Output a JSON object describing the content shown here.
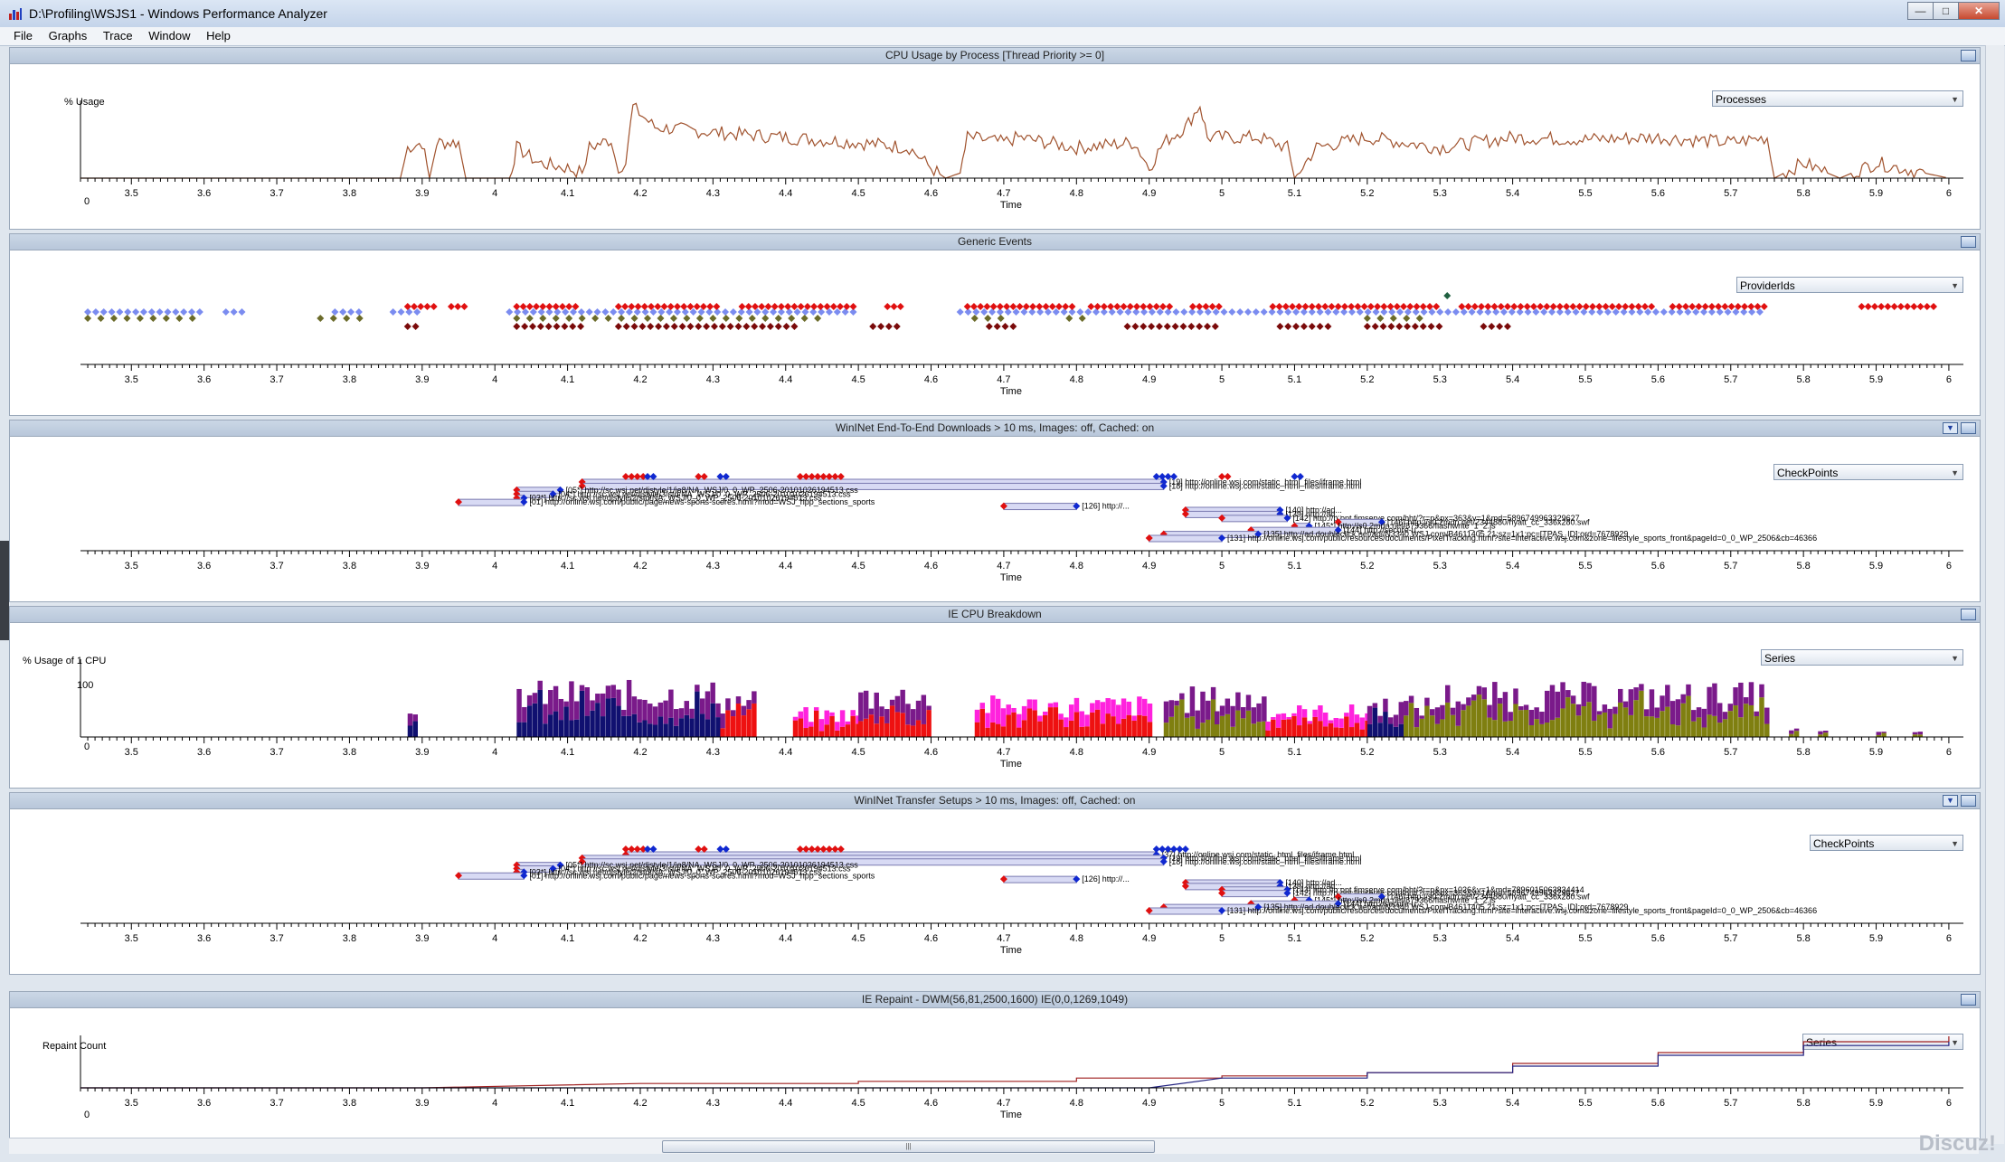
{
  "window": {
    "title": "D:\\Profiling\\WSJS1 - Windows Performance Analyzer",
    "watermark": "Discuz!"
  },
  "menu": [
    "File",
    "Graphs",
    "Trace",
    "Window",
    "Help"
  ],
  "axis": {
    "xlabel": "Time",
    "ticks": [
      "3.5",
      "3.6",
      "3.7",
      "3.8",
      "3.9",
      "4",
      "4.1",
      "4.2",
      "4.3",
      "4.4",
      "4.5",
      "4.6",
      "4.7",
      "4.8",
      "4.9",
      "5",
      "5.1",
      "5.2",
      "5.3",
      "5.4",
      "5.5",
      "5.6",
      "5.7",
      "5.8",
      "5.9",
      "6"
    ]
  },
  "panels": [
    {
      "title": "CPU Usage by Process [Thread Priority >= 0]",
      "dropdown": "Processes",
      "ylabel": "% Usage",
      "yticks": [
        "0"
      ]
    },
    {
      "title": "Generic Events",
      "dropdown": "ProviderIds"
    },
    {
      "title": "WinINet End-To-End Downloads > 10 ms, Images: off, Cached: on",
      "dropdown": "CheckPoints"
    },
    {
      "title": "IE CPU Breakdown",
      "dropdown": "Series",
      "ylabel": "% Usage of 1 CPU",
      "yticks": [
        "100",
        "0"
      ]
    },
    {
      "title": "WinINet Transfer Setups > 10 ms, Images: off, Cached: on",
      "dropdown": "CheckPoints"
    },
    {
      "title": "IE Repaint - DWM(56,81,2500,1600) IE(0,0,1269,1049)",
      "dropdown": "Series",
      "ylabel": "Repaint Count",
      "yticks": [
        "0"
      ]
    }
  ],
  "colors": {
    "cpu_line": "#a0522d",
    "ev_blue": "#7b8cf0",
    "ev_red": "#e01010",
    "ev_olive": "#6b6b2a",
    "ev_darkred": "#7a0a0a",
    "bar_navy": "#101070",
    "bar_purple": "#7a1a8a",
    "bar_red": "#ee1111",
    "bar_magenta": "#ff22dd",
    "bar_olive": "#7f7f10",
    "repaint_blue": "#202080",
    "repaint_red": "#a02020",
    "dl_fill": "#d8daf4",
    "dl_border": "#7a7ab0"
  },
  "downloads": [
    {
      "label": "[19] http://online.wsj.com/static_html_files/iframe.html",
      "start": 4.12,
      "end": 4.92
    },
    {
      "label": "[18] http://online.wsj.com/static_html_files/iframe.html",
      "start": 4.12,
      "end": 4.92
    },
    {
      "label": "[05*] http://sc.wsj.net/djstyle/1/ie8/NA_WSJ/0_0_WP_2506-20101026194513.css",
      "start": 4.03,
      "end": 4.09
    },
    {
      "label": "[04*] http://sc.wsj.net/djstyle/3/std/NA_WSJ/0_0_WP_2506-20101026194513.css",
      "start": 4.03,
      "end": 4.08
    },
    {
      "label": "[03*] http://sc.wsj.net/djstyle/2/std/NA_WSJ/0_0_WP_2506-20101026194513.css",
      "start": 4.03,
      "end": 4.04
    },
    {
      "label": "[01] http://online.wsj.com/public/page/news-sports-scores.html?mod=WSJ_hpp_sections_sports",
      "start": 3.95,
      "end": 4.04
    },
    {
      "label": "[126] http://...",
      "start": 4.7,
      "end": 4.8
    },
    {
      "label": "[140] http://ad...",
      "start": 4.95,
      "end": 5.08
    },
    {
      "label": "[139] http://ad...",
      "start": 4.95,
      "end": 5.08
    },
    {
      "label": "[142] http://p.opt.fimserve.com/bht/?r=p&px=363&v=1&md=5896749963329627",
      "start": 5.0,
      "end": 5.09
    },
    {
      "label": "[146] http://s0.2mdn.net/2344880/hyatt_cc_336x280.swf",
      "start": 5.16,
      "end": 5.22
    },
    {
      "label": "[145*] http://s0.2mdn.net/879366/flashwrite_1_2.js",
      "start": 5.1,
      "end": 5.12
    },
    {
      "label": "[144] http://secure-u...",
      "start": 5.04,
      "end": 5.16
    },
    {
      "label": "[135] http://ad.doubleclick.net/adi/N3340.WSJ.com/B4611405.21;sz=1x1;pc=[TPAS_ID];ord=7678929",
      "start": 4.92,
      "end": 5.05
    },
    {
      "label": "[131] http://online.wsj.com/public/resources/documents/PixelTracking.html?site=interactive.wsj.com&zone=lifestyle_sports_front&pageId=0_0_WP_2506&cb=46366",
      "start": 4.9,
      "end": 5.0
    }
  ],
  "setups": [
    {
      "label": "[37] http://online.wsj.com/static_html_files/iframe.html",
      "start": 4.18,
      "end": 4.91
    },
    {
      "label": "[19] http://online.wsj.com/static_html_files/iframe.html",
      "start": 4.12,
      "end": 4.92
    },
    {
      "label": "[18] http://online.wsj.com/static_html_files/iframe.html",
      "start": 4.12,
      "end": 4.92
    },
    {
      "label": "[05*] http://sc.wsj.net/djstyle/1/ie8/NA_WSJ/0_0_WP_2506-20101026194513.css",
      "start": 4.03,
      "end": 4.09
    },
    {
      "label": "[04*] http://sc.wsj.net/djstyle/3/std/NA_WSJ/0_0_WP_2506-20101026194513.css",
      "start": 4.03,
      "end": 4.08
    },
    {
      "label": "[03*] http://sc.wsj.net/djstyle/2/std/NA_WSJ/0_0_WP_2506-20101026194513.css",
      "start": 4.03,
      "end": 4.04
    },
    {
      "label": "[01] http://online.wsj.com/public/page/news-sports-scores.html?mod=WSJ_hpp_sections_sports",
      "start": 3.95,
      "end": 4.04
    },
    {
      "label": "[126] http://...",
      "start": 4.7,
      "end": 4.8
    },
    {
      "label": "[140] http://ad...",
      "start": 4.95,
      "end": 5.08
    },
    {
      "label": "[139] http://ad...",
      "start": 4.95,
      "end": 5.08
    },
    {
      "label": "[143] http://p.opt.fimserve.com/bht/?r=p&px=1026&v=1&md=7896015063834414",
      "start": 5.0,
      "end": 5.09
    },
    {
      "label": "[142] http://p.opt.fimserve.com/bht/?r=p&px=363&v=1&md=5896749963329627",
      "start": 5.0,
      "end": 5.09
    },
    {
      "label": "[146] http://s0.2mdn.net/2344880/hyatt_cc_336x280.swf",
      "start": 5.16,
      "end": 5.22
    },
    {
      "label": "[145*] http://s0.2mdn.net/879366/flashwrite_1_2.js",
      "start": 5.1,
      "end": 5.12
    },
    {
      "label": "[144] http://secure-u...",
      "start": 5.04,
      "end": 5.16
    },
    {
      "label": "[135] http://ad.doubleclick.net/adi/N3340.WSJ.com/B4611405.21;sz=1x1;pc=[TPAS_ID];ord=7678929",
      "start": 4.92,
      "end": 5.05
    },
    {
      "label": "[131] http://online.wsj.com/public/resources/documents/PixelTracking.html?site=interactive.wsj.com&zone=lifestyle_sports_front&pageId=0_0_WP_2506&cb=46366",
      "start": 4.9,
      "end": 5.0
    }
  ],
  "chart_data": [
    {
      "type": "line",
      "title": "CPU Usage by Process [Thread Priority >= 0]",
      "xlabel": "Time",
      "ylabel": "% Usage",
      "xlim": [
        3.43,
        6.02
      ],
      "series": [
        {
          "values": [
            [
              3.43,
              0
            ],
            [
              3.87,
              0
            ],
            [
              3.88,
              30
            ],
            [
              3.9,
              35
            ],
            [
              3.91,
              0
            ],
            [
              3.92,
              35
            ],
            [
              3.95,
              35
            ],
            [
              3.96,
              0
            ],
            [
              4.02,
              0
            ],
            [
              4.03,
              30
            ],
            [
              4.06,
              15
            ],
            [
              4.1,
              10
            ],
            [
              4.12,
              5
            ],
            [
              4.13,
              30
            ],
            [
              4.16,
              38
            ],
            [
              4.17,
              5
            ],
            [
              4.18,
              20
            ],
            [
              4.19,
              70
            ],
            [
              4.22,
              50
            ],
            [
              4.3,
              45
            ],
            [
              4.4,
              40
            ],
            [
              4.5,
              35
            ],
            [
              4.57,
              30
            ],
            [
              4.6,
              10
            ],
            [
              4.62,
              0
            ],
            [
              4.64,
              5
            ],
            [
              4.65,
              40
            ],
            [
              4.7,
              35
            ],
            [
              4.72,
              40
            ],
            [
              4.8,
              30
            ],
            [
              4.88,
              35
            ],
            [
              4.9,
              10
            ],
            [
              4.92,
              35
            ],
            [
              4.95,
              50
            ],
            [
              4.97,
              72
            ],
            [
              4.98,
              40
            ],
            [
              5.05,
              40
            ],
            [
              5.09,
              30
            ],
            [
              5.1,
              0
            ],
            [
              5.13,
              30
            ],
            [
              5.2,
              40
            ],
            [
              5.3,
              30
            ],
            [
              5.4,
              40
            ],
            [
              5.5,
              38
            ],
            [
              5.6,
              40
            ],
            [
              5.7,
              35
            ],
            [
              5.75,
              40
            ],
            [
              5.76,
              0
            ],
            [
              5.8,
              15
            ],
            [
              5.85,
              0
            ],
            [
              5.9,
              15
            ],
            [
              6.0,
              0
            ]
          ]
        }
      ]
    },
    {
      "type": "scatter",
      "title": "Generic Events",
      "xlabel": "Time"
    },
    {
      "type": "bar",
      "title": "IE CPU Breakdown",
      "xlabel": "Time",
      "ylabel": "% Usage of 1 CPU",
      "ylim": [
        0,
        120
      ]
    },
    {
      "type": "line",
      "title": "IE Repaint - DWM(56,81,2500,1600) IE(0,0,1269,1049)",
      "xlabel": "Time",
      "ylabel": "Repaint Count",
      "series": [
        {
          "values": [
            [
              3.43,
              0
            ],
            [
              3.9,
              0
            ],
            [
              4.2,
              8
            ],
            [
              4.5,
              12
            ],
            [
              4.8,
              18
            ],
            [
              5.0,
              22
            ],
            [
              5.2,
              28
            ],
            [
              5.4,
              45
            ],
            [
              5.6,
              65
            ],
            [
              5.8,
              85
            ],
            [
              6.0,
              95
            ]
          ]
        },
        {
          "values": [
            [
              3.43,
              0
            ],
            [
              4.5,
              0
            ],
            [
              4.9,
              0
            ],
            [
              5.0,
              18
            ],
            [
              5.2,
              28
            ],
            [
              5.4,
              40
            ],
            [
              5.6,
              60
            ],
            [
              5.8,
              78
            ],
            [
              6.0,
              85
            ]
          ]
        }
      ]
    }
  ]
}
